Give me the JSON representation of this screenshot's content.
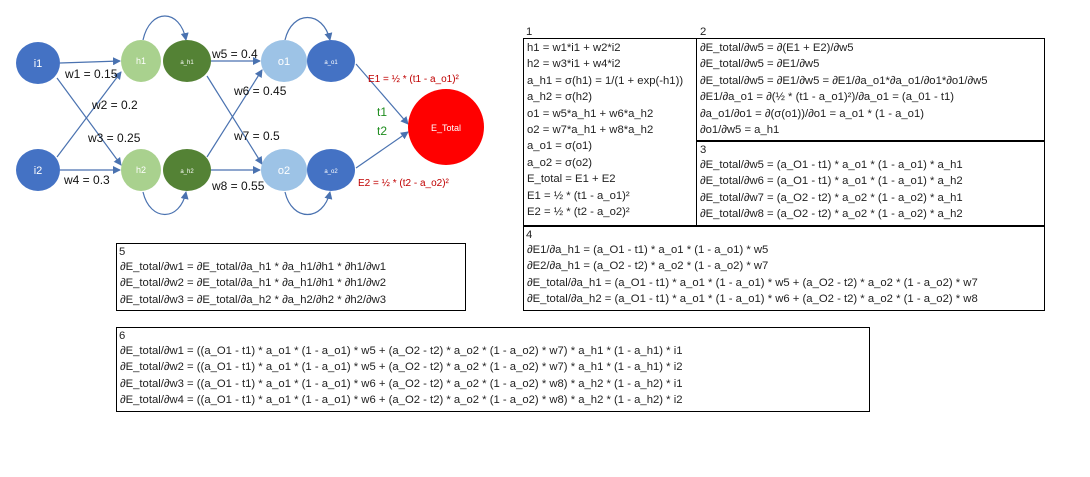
{
  "network": {
    "nodes": {
      "i1": "i1",
      "i2": "i2",
      "h1": "h1",
      "h2": "h2",
      "a_h1": "a_h1",
      "a_h2": "a_h2",
      "o1": "o1",
      "o2": "o2",
      "a_o1": "a_o1",
      "a_o2": "a_o2",
      "e_total": "E_Total"
    },
    "weights": {
      "w1": "w1 = 0.15",
      "w2": "w2 = 0.2",
      "w3": "w3 = 0.25",
      "w4": "w4 = 0.3",
      "w5": "w5 = 0.4",
      "w6": "w6 = 0.45",
      "w7": "w7 = 0.5",
      "w8": "w8 = 0.55"
    },
    "errors": {
      "e1": "E1 = ½ * (t1 - a_o1)²",
      "e2": "E2 = ½ * (t2 - a_o2)²"
    },
    "targets": {
      "t1": "t1",
      "t2": "t2"
    },
    "colors": {
      "input": "#4472c4",
      "hidden_net": "#a9d18e",
      "hidden_act": "#548235",
      "output_net": "#9dc3e6",
      "output_act": "#4472c4",
      "error": "#ff0000",
      "arrow": "#4a72b0"
    }
  },
  "sections": {
    "s1": {
      "num": "1",
      "lines": [
        "h1 = w1*i1 + w2*i2",
        "h2 = w3*i1 + w4*i2",
        "a_h1 = σ(h1) = 1/(1 + exp(-h1))",
        "a_h2 = σ(h2)",
        "o1 = w5*a_h1 + w6*a_h2",
        "o2 = w7*a_h1 + w8*a_h2",
        "a_o1 = σ(o1)",
        "a_o2 = σ(o2)",
        "E_total = E1 + E2",
        "E1 = ½ * (t1 - a_o1)²",
        "E2 = ½ * (t2 - a_o2)²"
      ]
    },
    "s2": {
      "num": "2",
      "lines": [
        "∂E_total/∂w5 = ∂(E1 + E2)/∂w5",
        "∂E_total/∂w5 = ∂E1/∂w5",
        "∂E_total/∂w5 = ∂E1/∂w5 = ∂E1/∂a_o1*∂a_o1/∂o1*∂o1/∂w5",
        "∂E1/∂a_o1 =  ∂(½ * (t1 - a_o1)²)/∂a_o1 = (a_01 - t1)",
        "∂a_o1/∂o1 =  ∂(σ(o1))/∂o1 = a_o1 * (1 - a_o1)",
        "∂o1/∂w5 = a_h1"
      ]
    },
    "s3": {
      "num": "3",
      "lines": [
        "∂E_total/∂w5 = (a_O1 - t1) * a_o1 * (1 - a_o1) *  a_h1",
        "∂E_total/∂w6 = (a_O1 - t1) * a_o1 * (1 - a_o1) *  a_h2",
        "∂E_total/∂w7 = (a_O2 - t2) * a_o2 * (1 - a_o2) *  a_h1",
        "∂E_total/∂w8 = (a_O2 - t2) * a_o2 * (1 - a_o2) *  a_h2"
      ]
    },
    "s4": {
      "num": "4",
      "lines": [
        "∂E1/∂a_h1 = (a_O1 - t1) * a_o1 * (1 - a_o1) * w5",
        "∂E2/∂a_h1 = (a_O2 - t2) * a_o2 * (1 - a_o2) * w7",
        "∂E_total/∂a_h1 = (a_O1 - t1) * a_o1 * (1 - a_o1) * w5 +  (a_O2 - t2) * a_o2 * (1 - a_o2) * w7",
        "∂E_total/∂a_h2 = (a_O1 - t1) * a_o1 * (1 - a_o1) * w6 +  (a_O2 - t2) * a_o2 * (1 - a_o2) * w8"
      ]
    },
    "s5": {
      "num": "5",
      "lines": [
        "∂E_total/∂w1 = ∂E_total/∂a_h1 * ∂a_h1/∂h1 * ∂h1/∂w1",
        "∂E_total/∂w2 = ∂E_total/∂a_h1 * ∂a_h1/∂h1 * ∂h1/∂w2",
        "∂E_total/∂w3 = ∂E_total/∂a_h2 * ∂a_h2/∂h2 * ∂h2/∂w3"
      ]
    },
    "s6": {
      "num": "6",
      "lines": [
        "∂E_total/∂w1 = ((a_O1 - t1) * a_o1 * (1 - a_o1) * w5 +  (a_O2 - t2) * a_o2 * (1 - a_o2) * w7) * a_h1 * (1 - a_h1) * i1",
        "∂E_total/∂w2 = ((a_O1 - t1) * a_o1 * (1 - a_o1) * w5 +  (a_O2 - t2) * a_o2 * (1 - a_o2) * w7) * a_h1 * (1 - a_h1) * i2",
        "∂E_total/∂w3 = ((a_O1 - t1) * a_o1 * (1 - a_o1) * w6 +  (a_O2 - t2) * a_o2 * (1 - a_o2) * w8) * a_h2 * (1 - a_h2) * i1",
        "∂E_total/∂w4 = ((a_O1 - t1) * a_o1 * (1 - a_o1) * w6 +  (a_O2 - t2) * a_o2 * (1 - a_o2) * w8) * a_h2 * (1 - a_h2) * i2"
      ]
    }
  }
}
